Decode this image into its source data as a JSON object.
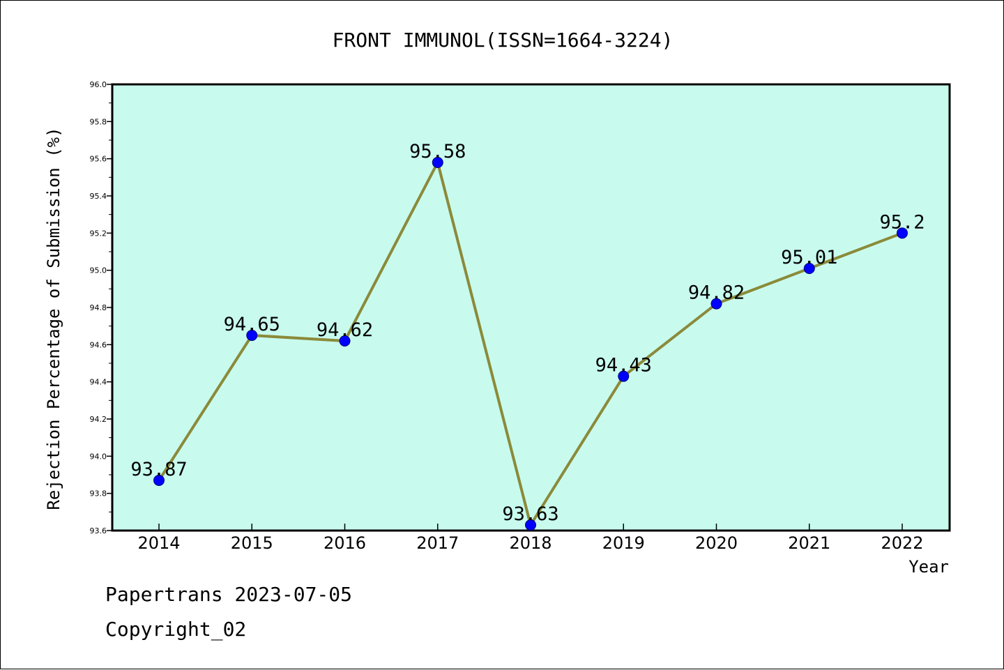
{
  "chart_data": {
    "type": "line",
    "title": "FRONT IMMUNOL(ISSN=1664-3224)",
    "xlabel": "Year",
    "ylabel": "Rejection Percentage of Submission (%)",
    "categories": [
      "2014",
      "2015",
      "2016",
      "2017",
      "2018",
      "2019",
      "2020",
      "2021",
      "2022"
    ],
    "series": [
      {
        "values": [
          93.87,
          94.65,
          94.62,
          95.58,
          93.63,
          94.43,
          94.82,
          95.01,
          95.2
        ],
        "labels": [
          "93.87",
          "94.65",
          "94.62",
          "95.58",
          "93.63",
          "94.43",
          "94.82",
          "95.01",
          "95.2"
        ]
      }
    ],
    "ylim": [
      93.6,
      96.0
    ],
    "yticks": [
      "93.6",
      "93.8",
      "94.0",
      "94.2",
      "94.4",
      "94.6",
      "94.8",
      "95.0",
      "95.2",
      "95.4",
      "95.6",
      "95.8",
      "96.0"
    ],
    "grid": false,
    "legend": "none",
    "colors": {
      "plot_background": "#c8fbee",
      "line": "#8b8a3a",
      "marker": "#0000ff"
    }
  },
  "footer": {
    "credit": "Papertrans 2023-07-05",
    "copyright": "Copyright_02"
  }
}
